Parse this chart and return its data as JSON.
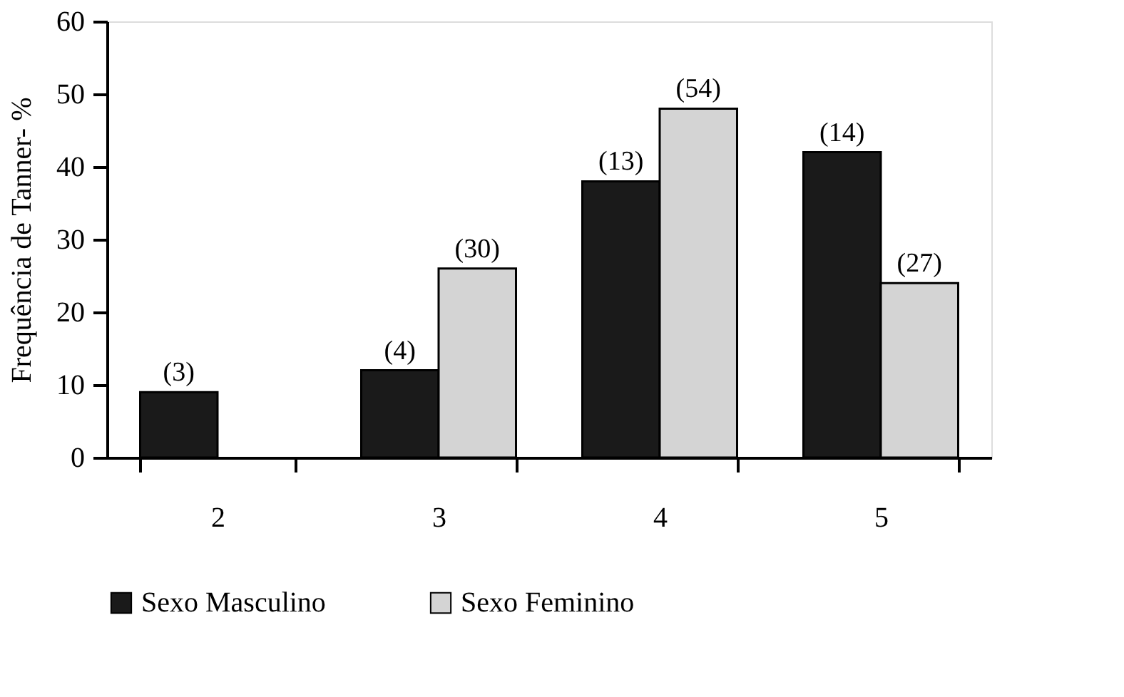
{
  "chart_data": {
    "type": "bar",
    "ylabel": "Frequência de Tanner- %",
    "categories": [
      "2",
      "3",
      "4",
      "5"
    ],
    "series": [
      {
        "name": "Sexo Masculino",
        "color": "#1a1a1a",
        "values": [
          9,
          12,
          38,
          42
        ]
      },
      {
        "name": "Sexo Feminino",
        "color": "#d4d4d4",
        "values": [
          null,
          26,
          48,
          24
        ]
      }
    ],
    "annotations": [
      {
        "text": "(3)",
        "x": "2",
        "y": 9
      },
      {
        "text": "(4)",
        "x": "3",
        "y": 12
      },
      {
        "text": "(30)",
        "x": "3",
        "y": 26
      },
      {
        "text": "(13)",
        "x": "4",
        "y": 38
      },
      {
        "text": "(54)",
        "x": "4",
        "y": 48
      },
      {
        "text": "(14)",
        "x": "5",
        "y": 42
      },
      {
        "text": "(27)",
        "x": "5",
        "y": 24
      }
    ],
    "ylim": [
      0,
      60
    ],
    "yticks": [
      0,
      10,
      20,
      30,
      40,
      50,
      60
    ],
    "grid": false,
    "legend": "bottom"
  }
}
